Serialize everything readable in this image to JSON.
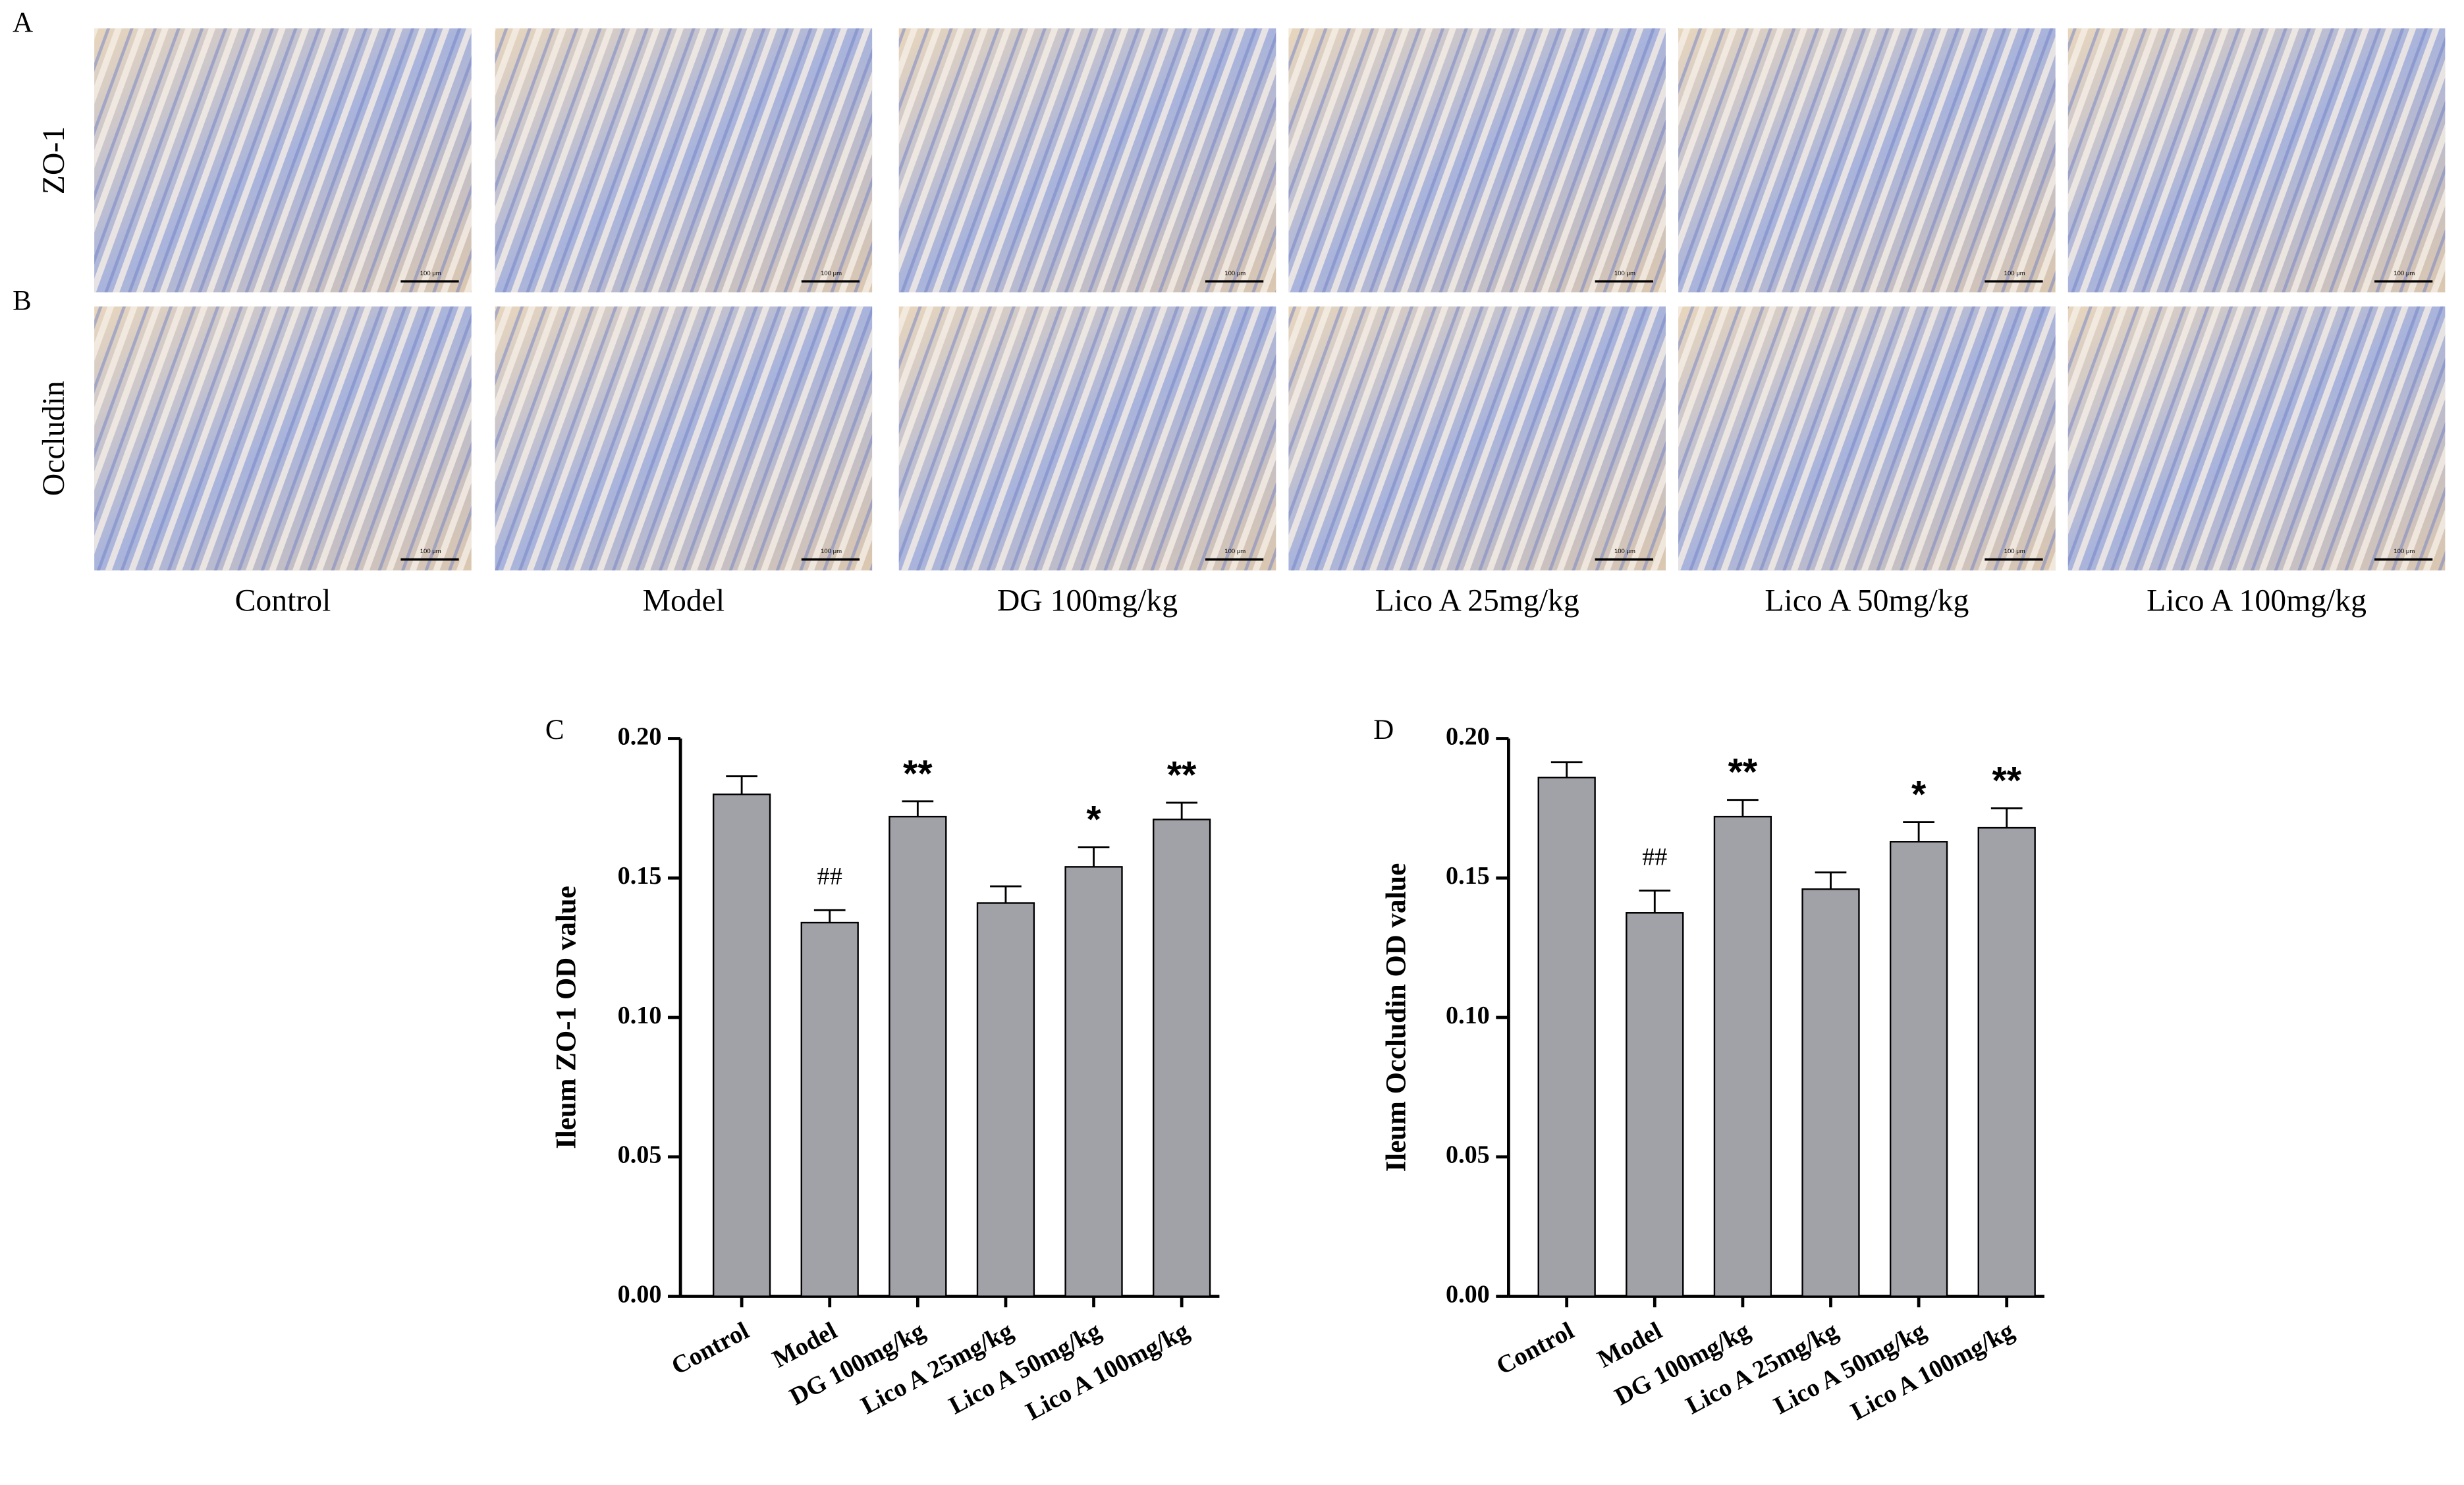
{
  "figure": {
    "panels": [
      "A",
      "B"
    ],
    "rows": [
      "ZO-1",
      "Occludin"
    ],
    "columns": [
      "Control",
      "Model",
      "DG 100mg/kg",
      "Lico A 25mg/kg",
      "Lico A 50mg/kg",
      "Lico A 100mg/kg"
    ],
    "scale_bar": "100 μm"
  },
  "chart_data": [
    {
      "type": "bar",
      "panel_label": "C",
      "ylabel": "Ileum ZO-1 OD value",
      "categories": [
        "Control",
        "Model",
        "DG 100mg/kg",
        "Lico A 25mg/kg",
        "Lico A 50mg/kg",
        "Lico A 100mg/kg"
      ],
      "series": [
        {
          "color": "#a1a1a8",
          "values": [
            0.18,
            0.134,
            0.172,
            0.141,
            0.154,
            0.171
          ],
          "errors": [
            0.0065,
            0.0045,
            0.0055,
            0.006,
            0.007,
            0.006
          ],
          "annotations": [
            null,
            "##",
            "**",
            null,
            "*",
            "**"
          ]
        }
      ],
      "ylim": [
        0,
        0.2
      ],
      "yticks": [
        {
          "value": 0,
          "label": "0.00"
        },
        {
          "value": 0.05,
          "label": "0.05"
        },
        {
          "value": 0.1,
          "label": "0.10"
        },
        {
          "value": 0.15,
          "label": "0.15"
        },
        {
          "value": 0.2,
          "label": "0.20"
        }
      ]
    },
    {
      "type": "bar",
      "panel_label": "D",
      "ylabel": "Ileum Occludin  OD value",
      "categories": [
        "Control",
        "Model",
        "DG 100mg/kg",
        "Lico A 25mg/kg",
        "Lico A 50mg/kg",
        "Lico A 100mg/kg"
      ],
      "series": [
        {
          "color": "#a1a1a8",
          "values": [
            0.186,
            0.1375,
            0.172,
            0.146,
            0.163,
            0.168
          ],
          "errors": [
            0.0055,
            0.008,
            0.006,
            0.006,
            0.007,
            0.007
          ],
          "annotations": [
            null,
            "##",
            "**",
            null,
            "*",
            "**"
          ]
        }
      ],
      "ylim": [
        0,
        0.2
      ],
      "yticks": [
        {
          "value": 0,
          "label": "0.00"
        },
        {
          "value": 0.05,
          "label": "0.05"
        },
        {
          "value": 0.1,
          "label": "0.10"
        },
        {
          "value": 0.15,
          "label": "0.15"
        },
        {
          "value": 0.2,
          "label": "0.20"
        }
      ]
    }
  ]
}
